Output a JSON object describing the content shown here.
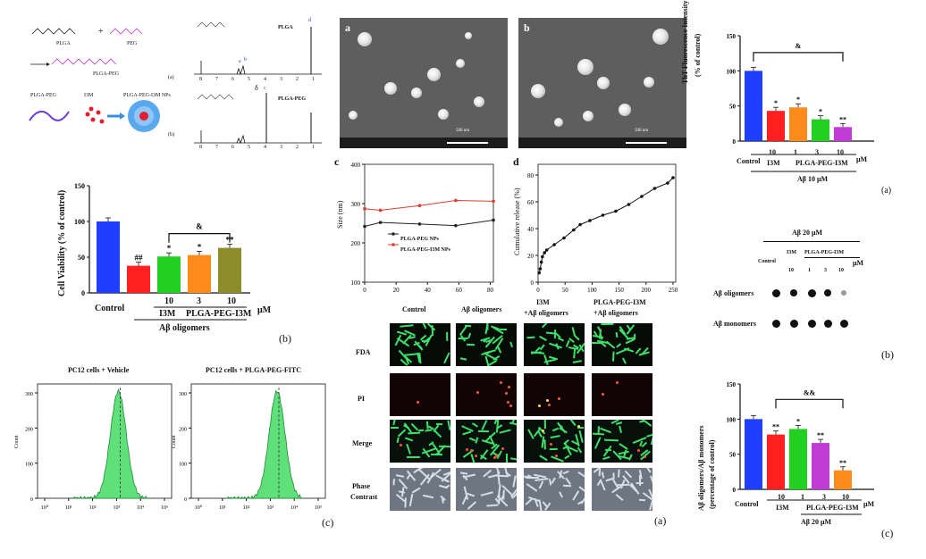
{
  "synthesis": {
    "label_plga": "PLGA",
    "plus": "+",
    "label_peg": "PEG",
    "label_plga_peg": "PLGA-PEG",
    "tag_a": "(a)",
    "label_np_plga_peg": "PLGA-PEG",
    "label_np_i3m": "I3M",
    "label_np_product": "PLGA-PEG-I3M NPs",
    "tag_b": "(b)"
  },
  "nmr": {
    "top_label": "PLGA",
    "bottom_label": "PLGA-PEG",
    "ticks": [
      "8",
      "7",
      "6",
      "5",
      "4",
      "3",
      "2",
      "1"
    ],
    "delta": "δ",
    "peak_labels": [
      "a",
      "b",
      "c",
      "d"
    ]
  },
  "sem": {
    "panel_a": "a",
    "panel_b": "b",
    "scale_text": "500 nm"
  },
  "tht": {
    "ylabel": "ThT Fluorescence Intensity",
    "ylabel2": "(% of control)",
    "ticks": [
      "0",
      "50",
      "100",
      "150"
    ],
    "bar_values": [
      100,
      43,
      48,
      31,
      20
    ],
    "bar_colors": [
      "#1f3fff",
      "#ff1f1f",
      "#ff8c1a",
      "#22d022",
      "#c23bd6"
    ],
    "stars": [
      "",
      "*",
      "*",
      "*",
      "**"
    ],
    "bracket": "&",
    "conc": [
      "10",
      "1",
      "3",
      "10"
    ],
    "control": "Control",
    "i3m": "I3M",
    "plga": "PLGA-PEG-I3M",
    "unit": "μM",
    "footer": "Aβ 10 μM",
    "tag": "(a)"
  },
  "cell_viability": {
    "ylabel": "Cell Viability (% of control)",
    "ticks": [
      "0",
      "50",
      "100",
      "150"
    ],
    "bar_values": [
      100,
      38,
      51,
      53,
      63
    ],
    "bar_colors": [
      "#1f3fff",
      "#ff1f1f",
      "#22d022",
      "#ff8c1a",
      "#8c8c2a"
    ],
    "stars": [
      "",
      "##",
      "*",
      "*",
      "**"
    ],
    "bracket": "&",
    "conc": [
      "10",
      "3",
      "10"
    ],
    "control": "Control",
    "i3m": "I3M",
    "plga": "PLGA-PEG-I3M",
    "unit": "μM",
    "footer": "Aβ oligomers",
    "tag": "(b)"
  },
  "size_plot": {
    "panel": "c",
    "ylabel": "Size (nm)",
    "yticks": [
      "100",
      "200",
      "300",
      "400"
    ],
    "xticks": [
      "0",
      "20",
      "40",
      "60",
      "80"
    ],
    "legend": [
      "PLGA-PEG NPs",
      "PLGA-PEG-I3M NPs"
    ],
    "series_a": [
      [
        0,
        242
      ],
      [
        10,
        252
      ],
      [
        35,
        248
      ],
      [
        58,
        244
      ],
      [
        82,
        258
      ]
    ],
    "series_b": [
      [
        0,
        287
      ],
      [
        10,
        283
      ],
      [
        35,
        295
      ],
      [
        58,
        308
      ],
      [
        82,
        306
      ]
    ]
  },
  "release": {
    "panel": "d",
    "ylabel": "Cumulative release (%)",
    "yticks": [
      "0",
      "20",
      "40",
      "60",
      "80"
    ],
    "xticks": [
      "0",
      "50",
      "100",
      "150",
      "200",
      "250"
    ],
    "points": [
      [
        2,
        7
      ],
      [
        4,
        10
      ],
      [
        6,
        15
      ],
      [
        8,
        19
      ],
      [
        12,
        22
      ],
      [
        16,
        24
      ],
      [
        30,
        28
      ],
      [
        48,
        33
      ],
      [
        66,
        39
      ],
      [
        78,
        43
      ],
      [
        96,
        46
      ],
      [
        120,
        50
      ],
      [
        144,
        53
      ],
      [
        168,
        58
      ],
      [
        192,
        64
      ],
      [
        216,
        70
      ],
      [
        240,
        74
      ],
      [
        250,
        78
      ]
    ]
  },
  "fluorescence": {
    "cols": [
      "Control",
      "Aβ oligomers",
      "I3M",
      "+Aβ oligomers",
      "PLGA-PEG-I3M",
      "+Aβ oligomers"
    ],
    "rows": [
      "FDA",
      "PI",
      "Merge",
      "Phase",
      "Contrast"
    ],
    "tag": "(a)"
  },
  "dot_blot": {
    "header": "Aβ 20 μM",
    "control": "Control",
    "i3m": "I3M",
    "plga": "PLGA-PEG-I3M",
    "conc": [
      "10",
      "1",
      "3",
      "10"
    ],
    "unit": "μM",
    "row1": "Aβ oligomers",
    "row2": "Aβ monomers",
    "tag": "(b)"
  },
  "ratio": {
    "ylabel": "Aβ oligomers/Aβ monomers",
    "ylabel2": "(percentage of control)",
    "ticks": [
      "0",
      "50",
      "100",
      "150"
    ],
    "bar_values": [
      100,
      78,
      86,
      66,
      27
    ],
    "bar_colors": [
      "#1f3fff",
      "#ff1f1f",
      "#22d022",
      "#c23bd6",
      "#ff8c1a"
    ],
    "stars": [
      "",
      "**",
      "*",
      "**",
      "**"
    ],
    "bracket": "&&",
    "conc": [
      "10",
      "1",
      "3",
      "10"
    ],
    "control": "Control",
    "i3m": "I3M",
    "plga": "PLGA-PEG-I3M",
    "unit": "μM",
    "footer": "Aβ 20 μM",
    "tag": "(c)"
  },
  "flow": {
    "left_title": "PC12 cells + Vehicle",
    "right_title": "PC12 cells + PLGA-PEG-FITC",
    "ylabel": "Count",
    "left_yticks": [
      "0",
      "100",
      "200",
      "300"
    ],
    "right_yticks": [
      "0",
      "100",
      "200",
      "300"
    ],
    "xticks": [
      "10⁰",
      "10¹",
      "10²",
      "10³",
      "10⁴",
      "10⁵"
    ],
    "tag": "(c)"
  }
}
